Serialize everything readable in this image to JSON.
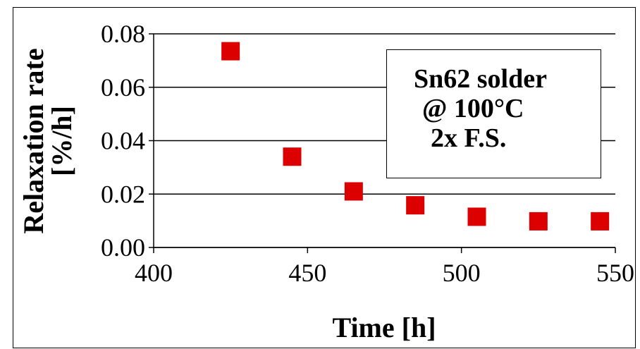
{
  "chart_data": {
    "type": "scatter",
    "xlabel": "Time [h]",
    "ylabel_line1": "Relaxation rate",
    "ylabel_line2": "[%/h]",
    "xlim": [
      400,
      550
    ],
    "ylim": [
      0.0,
      0.08
    ],
    "x_ticks": [
      "400",
      "450",
      "500",
      "550"
    ],
    "y_ticks": [
      "0.00",
      "0.02",
      "0.04",
      "0.06",
      "0.08"
    ],
    "grid": "horizontal",
    "marker_color": "#dd0000",
    "series": [
      {
        "x": [
          425,
          445,
          465,
          485,
          505,
          525,
          545
        ],
        "y": [
          0.0735,
          0.034,
          0.021,
          0.0158,
          0.0115,
          0.0098,
          0.0098
        ]
      }
    ],
    "annotation": {
      "line1": "Sn62 solder",
      "line2": "@ 100°C",
      "line3": "2x F.S."
    }
  }
}
